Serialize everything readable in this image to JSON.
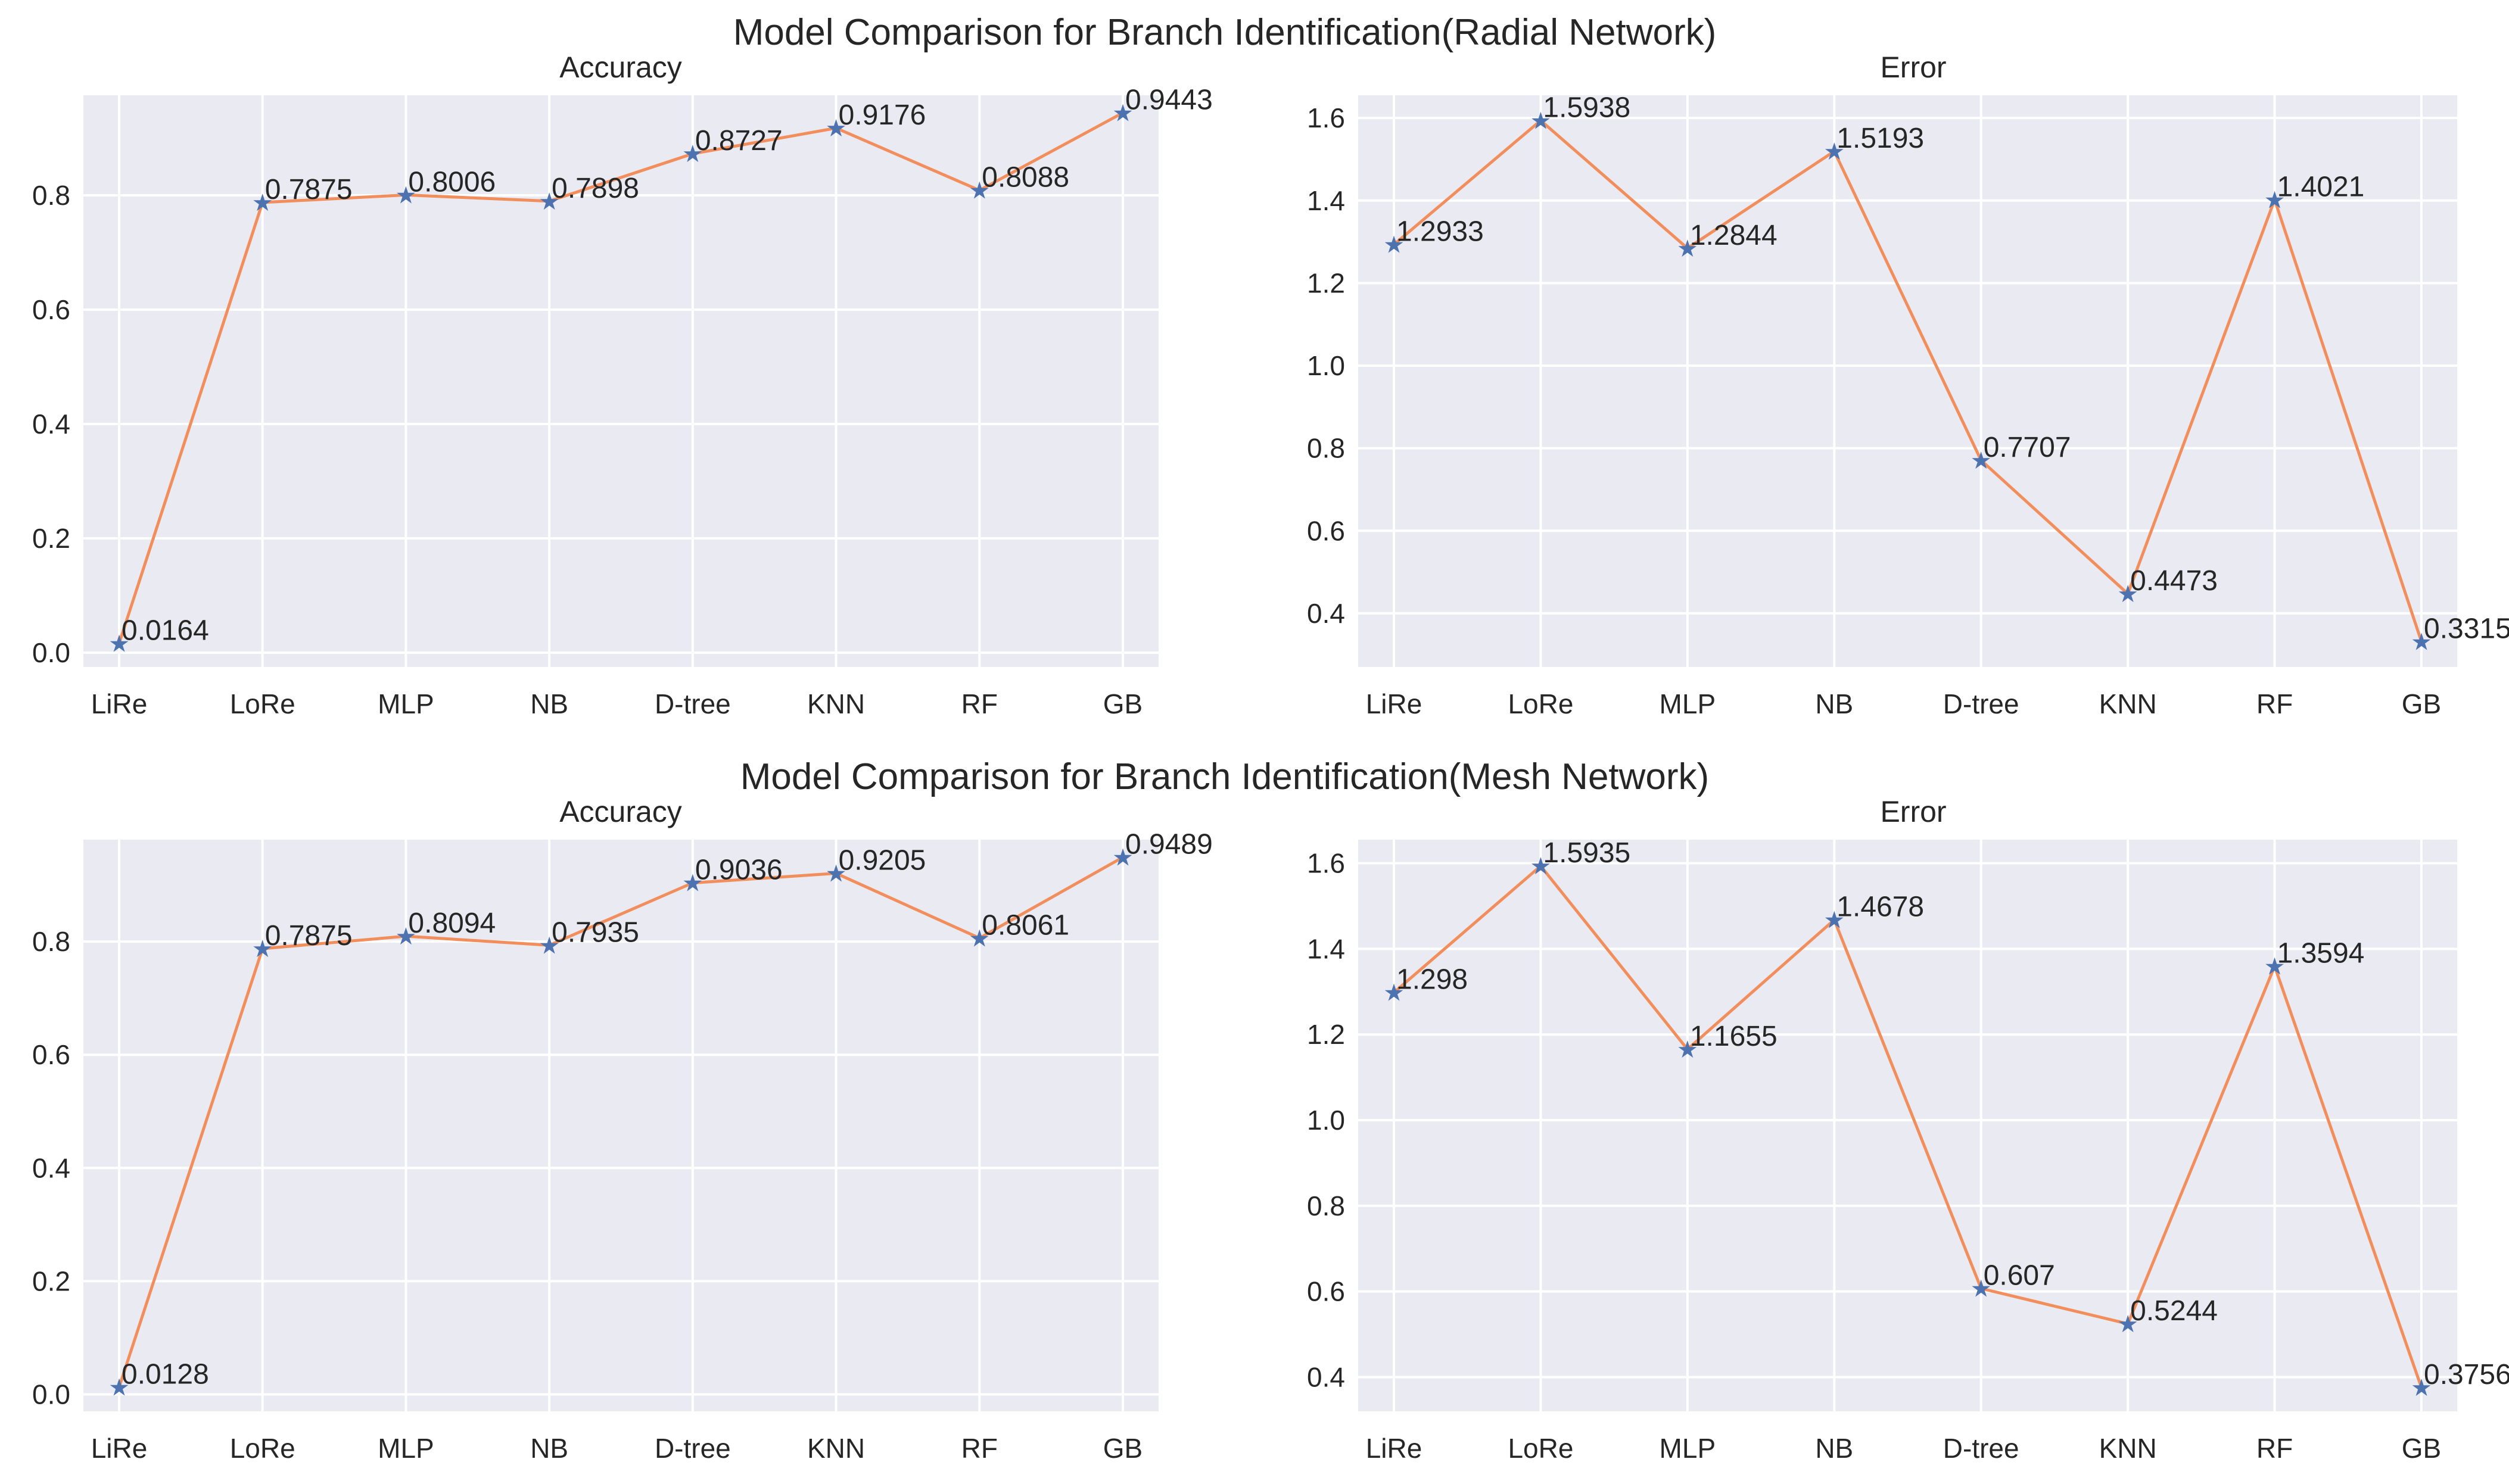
{
  "chart_data": [
    {
      "type": "line",
      "suptitle": "Model Comparison for Branch Identification(Radial Network)",
      "title": "Accuracy",
      "categories": [
        "LiRe",
        "LoRe",
        "MLP",
        "NB",
        "D-tree",
        "KNN",
        "RF",
        "GB"
      ],
      "values": [
        0.0164,
        0.7875,
        0.8006,
        0.7898,
        0.8727,
        0.9176,
        0.8088,
        0.9443
      ],
      "labels": [
        "0.0164",
        "0.7875",
        "0.8006",
        "0.7898",
        "0.8727",
        "0.9176",
        "0.8088",
        "0.9443"
      ],
      "yticks": [
        "0.0",
        "0.2",
        "0.4",
        "0.6",
        "0.8"
      ],
      "ylim": [
        -0.025,
        0.975
      ],
      "xlabel": "",
      "ylabel": "",
      "marker": "*",
      "line_color": "#f28e5b",
      "marker_color": "#4c72b0"
    },
    {
      "type": "line",
      "title": "Error",
      "categories": [
        "LiRe",
        "LoRe",
        "MLP",
        "NB",
        "D-tree",
        "KNN",
        "RF",
        "GB"
      ],
      "values": [
        1.2933,
        1.5938,
        1.2844,
        1.5193,
        0.7707,
        0.4473,
        1.4021,
        0.3315
      ],
      "labels": [
        "1.2933",
        "1.5938",
        "1.2844",
        "1.5193",
        "0.7707",
        "0.4473",
        "1.4021",
        "0.3315"
      ],
      "yticks": [
        "0.4",
        "0.6",
        "0.8",
        "1.0",
        "1.2",
        "1.4",
        "1.6"
      ],
      "ylim": [
        0.27,
        1.655
      ],
      "xlabel": "",
      "ylabel": "",
      "marker": "*",
      "line_color": "#f28e5b",
      "marker_color": "#4c72b0"
    },
    {
      "type": "line",
      "suptitle": "Model Comparison for Branch Identification(Mesh Network)",
      "title": "Accuracy",
      "categories": [
        "LiRe",
        "LoRe",
        "MLP",
        "NB",
        "D-tree",
        "KNN",
        "RF",
        "GB"
      ],
      "values": [
        0.0128,
        0.7875,
        0.8094,
        0.7935,
        0.9036,
        0.9205,
        0.8061,
        0.9489
      ],
      "labels": [
        "0.0128",
        "0.7875",
        "0.8094",
        "0.7935",
        "0.9036",
        "0.9205",
        "0.8061",
        "0.9489"
      ],
      "yticks": [
        "0.0",
        "0.2",
        "0.4",
        "0.6",
        "0.8"
      ],
      "ylim": [
        -0.03,
        0.98
      ],
      "xlabel": "",
      "ylabel": "",
      "marker": "*",
      "line_color": "#f28e5b",
      "marker_color": "#4c72b0"
    },
    {
      "type": "line",
      "title": "Error",
      "categories": [
        "LiRe",
        "LoRe",
        "MLP",
        "NB",
        "D-tree",
        "KNN",
        "RF",
        "GB"
      ],
      "values": [
        1.298,
        1.5935,
        1.1655,
        1.4678,
        0.607,
        0.5244,
        1.3594,
        0.3756
      ],
      "labels": [
        "1.298",
        "1.5935",
        "1.1655",
        "1.4678",
        "0.607",
        "0.5244",
        "1.3594",
        "0.3756"
      ],
      "yticks": [
        "0.4",
        "0.6",
        "0.8",
        "1.0",
        "1.2",
        "1.4",
        "1.6"
      ],
      "ylim": [
        0.32,
        1.655
      ],
      "xlabel": "",
      "ylabel": "",
      "marker": "*",
      "line_color": "#f28e5b",
      "marker_color": "#4c72b0"
    }
  ]
}
